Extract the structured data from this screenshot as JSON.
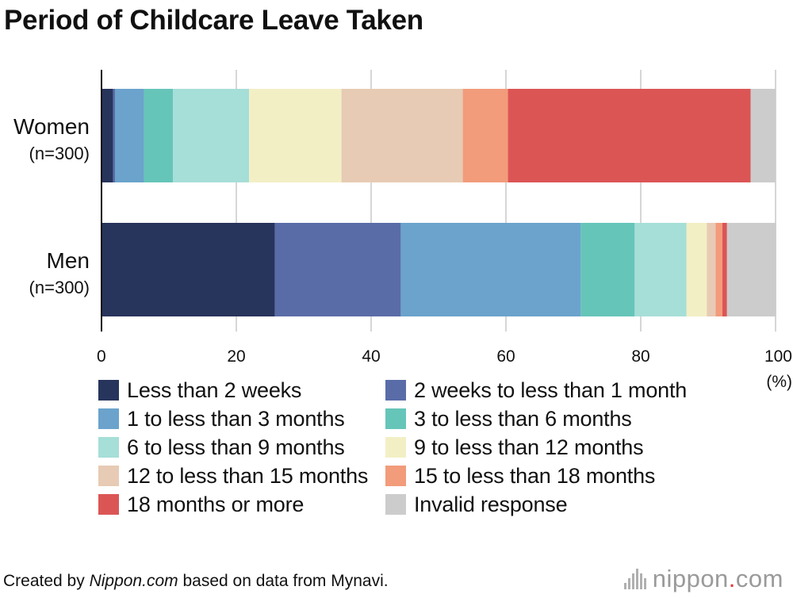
{
  "title": "Period of Childcare Leave Taken",
  "footer": {
    "prefix": "Created by ",
    "source_italic": "Nippon.com",
    "suffix": " based on data from Mynavi."
  },
  "logo": {
    "left": "nippon",
    "dot": ".",
    "right": "com"
  },
  "chart_data": {
    "type": "bar",
    "orientation": "horizontal",
    "stacked": true,
    "title": "Period of Childcare Leave Taken",
    "categories": [
      "Women",
      "Men"
    ],
    "category_notes": [
      "(n=300)",
      "(n=300)"
    ],
    "xlim": [
      0,
      100
    ],
    "xticks": [
      "0",
      "20",
      "40",
      "60",
      "80",
      "100"
    ],
    "xunit": "(%)",
    "grid": true,
    "legend_position": "bottom",
    "series": [
      {
        "name": "Less than 2 weeks",
        "color": "#27345b",
        "values": [
          1.7,
          25.7
        ]
      },
      {
        "name": "2 weeks to less than 1 month",
        "color": "#596ca8",
        "values": [
          0.3,
          18.7
        ]
      },
      {
        "name": "1 to less than 3 months",
        "color": "#6ba3cc",
        "values": [
          4.3,
          26.7
        ]
      },
      {
        "name": "3 to less than 6 months",
        "color": "#66c5b9",
        "values": [
          4.3,
          8.0
        ]
      },
      {
        "name": "6 to less than 9 months",
        "color": "#a6ded8",
        "values": [
          11.3,
          7.7
        ]
      },
      {
        "name": "9 to less than 12 months",
        "color": "#f3efc5",
        "values": [
          13.7,
          3.0
        ]
      },
      {
        "name": "12 to less than 15 months",
        "color": "#e7cbb4",
        "values": [
          18.0,
          1.3
        ]
      },
      {
        "name": "15 to less than 18 months",
        "color": "#f29c7b",
        "values": [
          6.7,
          1.0
        ]
      },
      {
        "name": "18 months or more",
        "color": "#dc5555",
        "values": [
          36.0,
          0.7
        ]
      },
      {
        "name": "Invalid response",
        "color": "#cccccc",
        "values": [
          3.7,
          7.3
        ]
      }
    ]
  }
}
